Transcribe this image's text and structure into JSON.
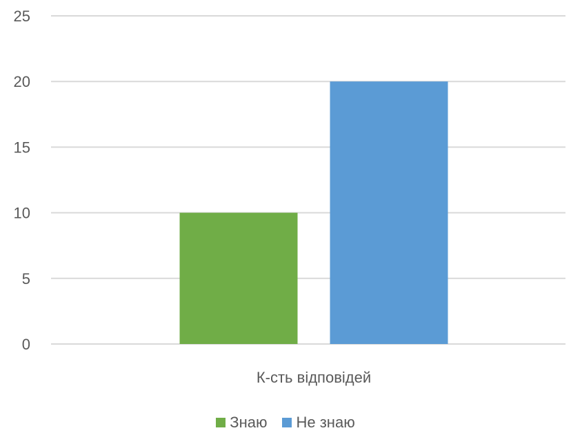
{
  "chart_data": {
    "type": "bar",
    "title": "",
    "xlabel": "",
    "ylabel": "",
    "categories": [
      "К-сть відповідей"
    ],
    "series": [
      {
        "name": "Знаю",
        "values": [
          10
        ],
        "color": "#70ad47"
      },
      {
        "name": "Не знаю",
        "values": [
          20
        ],
        "color": "#5b9bd5"
      }
    ],
    "ylim": [
      0,
      25
    ],
    "yticks": [
      0,
      5,
      10,
      15,
      20,
      25
    ],
    "grid": true,
    "legend_position": "bottom",
    "gridline_color": "#d9d9d9",
    "text_color": "#595959"
  }
}
